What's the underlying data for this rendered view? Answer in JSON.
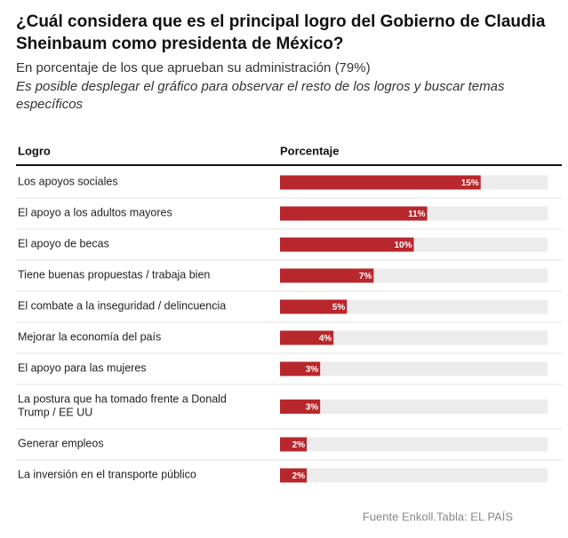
{
  "chart_data": {
    "type": "bar",
    "orientation": "horizontal",
    "title": "¿Cuál considera que es el principal logro del Gobierno de Claudia Sheinbaum como presidenta de México?",
    "subtitle": "En porcentaje de los que aprueban su administración (79%)",
    "note": "Es posible desplegar el gráfico para observar el resto de los logros y buscar temas específicos",
    "columns": [
      "Logro",
      "Porcentaje"
    ],
    "categories": [
      "Los apoyos sociales",
      "El apoyo a los adultos mayores",
      "El apoyo de becas",
      "Tiene buenas propuestas / trabaja bien",
      "El combate a la inseguridad / delincuencia",
      "Mejorar la economía del país",
      "El apoyo para las mujeres",
      "La postura que ha tomado frente a Donald Trump / EE UU",
      "Generar empleos",
      "La inversión en el transporte público"
    ],
    "values": [
      15,
      11,
      10,
      7,
      5,
      4,
      3,
      3,
      2,
      2
    ],
    "value_labels": [
      "15%",
      "11%",
      "10%",
      "7%",
      "5%",
      "4%",
      "3%",
      "3%",
      "2%",
      "2%"
    ],
    "color": "#b8272c",
    "track_color": "#ececec",
    "xlim": [
      0,
      20
    ],
    "source": "Fuente Enkoll.Tabla: EL PAÍS"
  }
}
